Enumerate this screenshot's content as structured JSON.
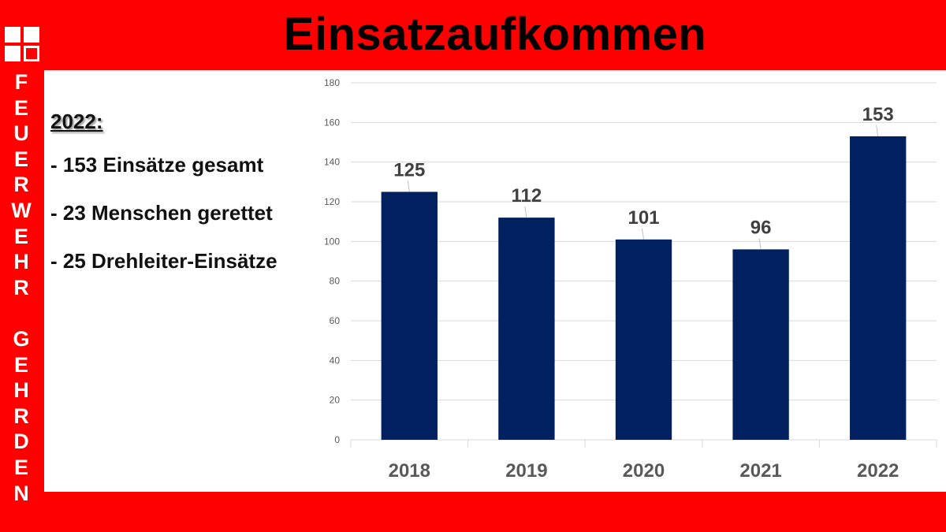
{
  "title": "Einsatzaufkommen",
  "sidebar": {
    "vertical_text": [
      "F",
      "E",
      "U",
      "E",
      "R",
      "W",
      "E",
      "H",
      "R",
      "",
      "G",
      "E",
      "H",
      "R",
      "D",
      "E",
      "N"
    ]
  },
  "info": {
    "year_heading": "2022:",
    "lines": [
      "- 153 Einsätze gesamt",
      "- 23 Menschen gerettet",
      "- 25 Drehleiter-Einsätze"
    ]
  },
  "colors": {
    "background": "#ff0000",
    "bar": "#002060"
  },
  "chart_data": {
    "type": "bar",
    "title": "",
    "xlabel": "",
    "ylabel": "",
    "categories": [
      "2018",
      "2019",
      "2020",
      "2021",
      "2022"
    ],
    "values": [
      125,
      112,
      101,
      96,
      153
    ],
    "data_labels": [
      "125",
      "112",
      "101",
      "96",
      "153"
    ],
    "ylim": [
      0,
      180
    ],
    "yticks": [
      0,
      20,
      40,
      60,
      80,
      100,
      120,
      140,
      160,
      180
    ],
    "grid": true,
    "legend": "none"
  }
}
